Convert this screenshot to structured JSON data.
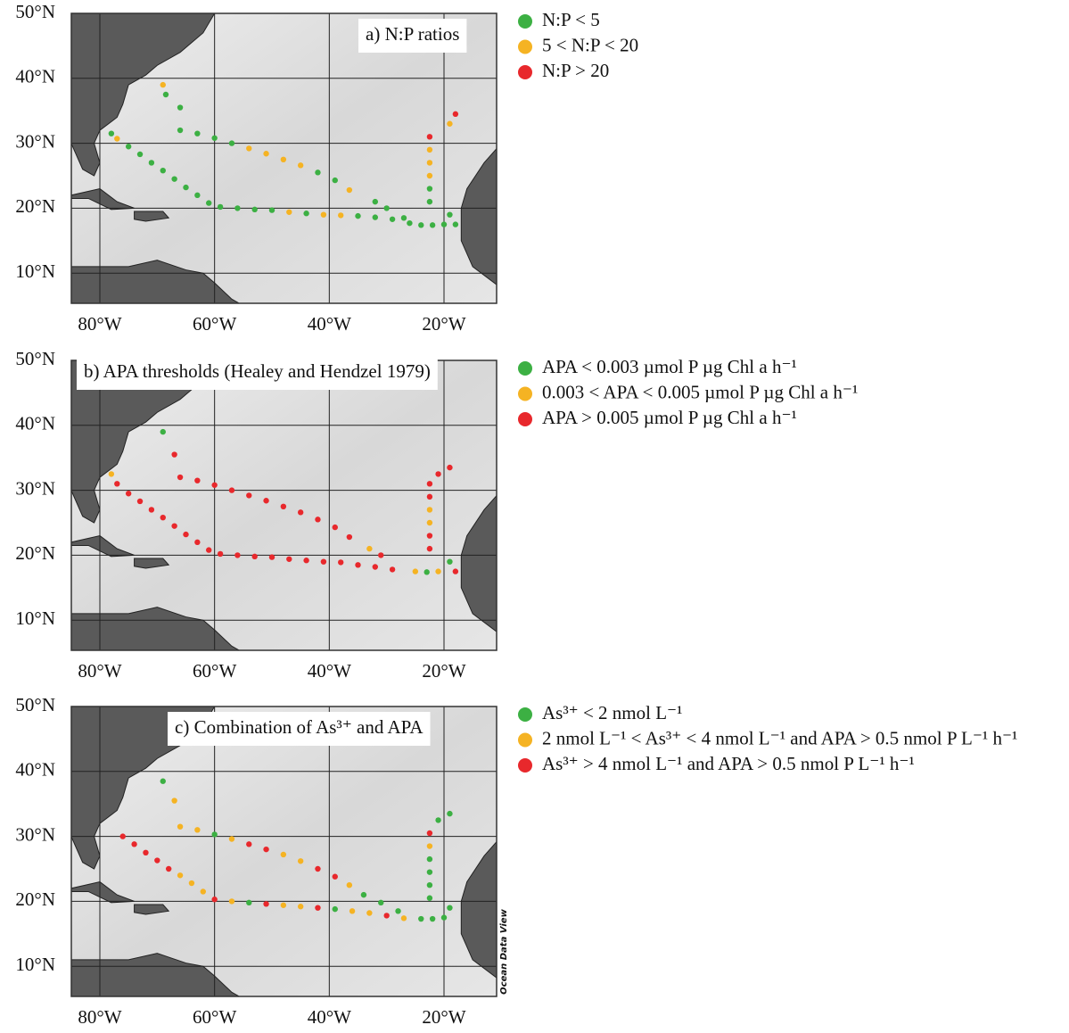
{
  "panels": [
    {
      "title": "a) N:P ratios",
      "legend": [
        {
          "label": "N:P < 5",
          "color": "#3cb043"
        },
        {
          "label": "5 < N:P < 20",
          "color": "#f5b323"
        },
        {
          "label": "N:P > 20",
          "color": "#e8282c"
        }
      ],
      "xticks": [
        {
          "value": -80,
          "label": "80°W"
        },
        {
          "value": -60,
          "label": "60°W"
        },
        {
          "value": -40,
          "label": "40°W"
        },
        {
          "value": -20,
          "label": "20°W"
        }
      ],
      "yticks": [
        {
          "value": 50,
          "label": "50°N"
        },
        {
          "value": 40,
          "label": "40°N"
        },
        {
          "value": 30,
          "label": "30°N"
        },
        {
          "value": 20,
          "label": "20°N"
        },
        {
          "value": 10,
          "label": "10°N"
        }
      ],
      "points": [
        [
          -69,
          39,
          1
        ],
        [
          -68.5,
          37.5,
          0
        ],
        [
          -66,
          35.5,
          0
        ],
        [
          -78,
          31.5,
          0
        ],
        [
          -77,
          30.7,
          1
        ],
        [
          -75,
          29.5,
          0
        ],
        [
          -73,
          28.3,
          0
        ],
        [
          -71,
          27,
          0
        ],
        [
          -69,
          25.8,
          0
        ],
        [
          -67,
          24.5,
          0
        ],
        [
          -65,
          23.2,
          0
        ],
        [
          -63,
          22,
          0
        ],
        [
          -61,
          20.8,
          0
        ],
        [
          -59,
          20.2,
          0
        ],
        [
          -56,
          20,
          0
        ],
        [
          -53,
          19.8,
          0
        ],
        [
          -50,
          19.7,
          0
        ],
        [
          -47,
          19.4,
          1
        ],
        [
          -44,
          19.2,
          0
        ],
        [
          -41,
          19,
          1
        ],
        [
          -38,
          18.9,
          1
        ],
        [
          -35,
          18.8,
          0
        ],
        [
          -32,
          18.6,
          0
        ],
        [
          -29,
          18.3,
          0
        ],
        [
          -26,
          17.7,
          0
        ],
        [
          -24,
          17.4,
          0
        ],
        [
          -22,
          17.4,
          0
        ],
        [
          -20,
          17.5,
          0
        ],
        [
          -18,
          17.5,
          0
        ],
        [
          -19,
          19,
          0
        ],
        [
          -66,
          32,
          0
        ],
        [
          -63,
          31.5,
          0
        ],
        [
          -60,
          30.8,
          0
        ],
        [
          -57,
          30,
          0
        ],
        [
          -54,
          29.2,
          1
        ],
        [
          -51,
          28.4,
          1
        ],
        [
          -48,
          27.5,
          1
        ],
        [
          -45,
          26.6,
          1
        ],
        [
          -42,
          25.5,
          0
        ],
        [
          -39,
          24.3,
          0
        ],
        [
          -36.5,
          22.8,
          1
        ],
        [
          -32,
          21,
          0
        ],
        [
          -30,
          20,
          0
        ],
        [
          -27,
          18.5,
          0
        ],
        [
          -22.5,
          31,
          2
        ],
        [
          -22.5,
          29,
          1
        ],
        [
          -22.5,
          27,
          1
        ],
        [
          -22.5,
          25,
          1
        ],
        [
          -22.5,
          23,
          0
        ],
        [
          -22.5,
          21,
          0
        ],
        [
          -19,
          33,
          1
        ],
        [
          -18,
          34.5,
          2
        ]
      ]
    },
    {
      "title": "b) APA thresholds (Healey and Hendzel 1979)",
      "legend": [
        {
          "label": "APA < 0.003 µmol P µg Chl a h⁻¹",
          "color": "#3cb043"
        },
        {
          "label": "0.003 < APA < 0.005 µmol P µg Chl a h⁻¹",
          "color": "#f5b323"
        },
        {
          "label": "APA > 0.005 µmol P µg Chl a h⁻¹",
          "color": "#e8282c"
        }
      ],
      "xticks": [
        {
          "value": -80,
          "label": "80°W"
        },
        {
          "value": -60,
          "label": "60°W"
        },
        {
          "value": -40,
          "label": "40°W"
        },
        {
          "value": -20,
          "label": "20°W"
        }
      ],
      "yticks": [
        {
          "value": 50,
          "label": "50°N"
        },
        {
          "value": 40,
          "label": "40°N"
        },
        {
          "value": 30,
          "label": "30°N"
        },
        {
          "value": 20,
          "label": "20°N"
        },
        {
          "value": 10,
          "label": "10°N"
        }
      ],
      "points": [
        [
          -69,
          39,
          0
        ],
        [
          -67,
          35.5,
          2
        ],
        [
          -78,
          32.5,
          1
        ],
        [
          -77,
          31,
          2
        ],
        [
          -75,
          29.5,
          2
        ],
        [
          -73,
          28.3,
          2
        ],
        [
          -71,
          27,
          2
        ],
        [
          -69,
          25.8,
          2
        ],
        [
          -67,
          24.5,
          2
        ],
        [
          -65,
          23.2,
          2
        ],
        [
          -63,
          22,
          2
        ],
        [
          -61,
          20.8,
          2
        ],
        [
          -59,
          20.2,
          2
        ],
        [
          -56,
          20,
          2
        ],
        [
          -53,
          19.8,
          2
        ],
        [
          -50,
          19.7,
          2
        ],
        [
          -47,
          19.4,
          2
        ],
        [
          -44,
          19.2,
          2
        ],
        [
          -41,
          19,
          2
        ],
        [
          -38,
          18.9,
          2
        ],
        [
          -35,
          18.5,
          2
        ],
        [
          -32,
          18.2,
          2
        ],
        [
          -29,
          17.8,
          2
        ],
        [
          -25,
          17.5,
          1
        ],
        [
          -23,
          17.4,
          0
        ],
        [
          -21,
          17.5,
          1
        ],
        [
          -19,
          19,
          0
        ],
        [
          -18,
          17.5,
          2
        ],
        [
          -66,
          32,
          2
        ],
        [
          -63,
          31.5,
          2
        ],
        [
          -60,
          30.8,
          2
        ],
        [
          -57,
          30,
          2
        ],
        [
          -54,
          29.2,
          2
        ],
        [
          -51,
          28.4,
          2
        ],
        [
          -48,
          27.5,
          2
        ],
        [
          -45,
          26.6,
          2
        ],
        [
          -42,
          25.5,
          2
        ],
        [
          -39,
          24.3,
          2
        ],
        [
          -36.5,
          22.8,
          2
        ],
        [
          -33,
          21,
          1
        ],
        [
          -31,
          20,
          2
        ],
        [
          -22.5,
          31,
          2
        ],
        [
          -22.5,
          29,
          2
        ],
        [
          -22.5,
          27,
          1
        ],
        [
          -22.5,
          25,
          1
        ],
        [
          -22.5,
          23,
          2
        ],
        [
          -22.5,
          21,
          2
        ],
        [
          -21,
          32.5,
          2
        ],
        [
          -19,
          33.5,
          2
        ]
      ]
    },
    {
      "title": "c) Combination of As³⁺ and APA",
      "legend": [
        {
          "label": "As³⁺ < 2 nmol L⁻¹",
          "color": "#3cb043"
        },
        {
          "label": "2 nmol L⁻¹ < As³⁺ < 4 nmol L⁻¹ and APA > 0.5 nmol P L⁻¹ h⁻¹",
          "color": "#f5b323"
        },
        {
          "label": "As³⁺ > 4 nmol L⁻¹ and APA > 0.5 nmol P L⁻¹ h⁻¹",
          "color": "#e8282c"
        }
      ],
      "xticks": [
        {
          "value": -80,
          "label": "80°W"
        },
        {
          "value": -60,
          "label": "60°W"
        },
        {
          "value": -40,
          "label": "40°W"
        },
        {
          "value": -20,
          "label": "20°W"
        }
      ],
      "yticks": [
        {
          "value": 50,
          "label": "50°N"
        },
        {
          "value": 40,
          "label": "40°N"
        },
        {
          "value": 30,
          "label": "30°N"
        },
        {
          "value": 20,
          "label": "20°N"
        },
        {
          "value": 10,
          "label": "10°N"
        }
      ],
      "watermark": "Ocean Data View",
      "points": [
        [
          -69,
          38.5,
          0
        ],
        [
          -67,
          35.5,
          1
        ],
        [
          -76,
          30,
          2
        ],
        [
          -74,
          28.8,
          2
        ],
        [
          -72,
          27.5,
          2
        ],
        [
          -70,
          26.3,
          2
        ],
        [
          -68,
          25,
          2
        ],
        [
          -66,
          24,
          1
        ],
        [
          -64,
          22.8,
          1
        ],
        [
          -62,
          21.5,
          1
        ],
        [
          -60,
          20.3,
          2
        ],
        [
          -57,
          20,
          1
        ],
        [
          -54,
          19.8,
          0
        ],
        [
          -51,
          19.6,
          2
        ],
        [
          -48,
          19.4,
          1
        ],
        [
          -45,
          19.2,
          1
        ],
        [
          -42,
          19,
          2
        ],
        [
          -39,
          18.8,
          0
        ],
        [
          -36,
          18.5,
          1
        ],
        [
          -33,
          18.2,
          1
        ],
        [
          -30,
          17.8,
          2
        ],
        [
          -27,
          17.4,
          1
        ],
        [
          -24,
          17.3,
          0
        ],
        [
          -22,
          17.3,
          0
        ],
        [
          -20,
          17.5,
          0
        ],
        [
          -19,
          19,
          0
        ],
        [
          -66,
          31.5,
          1
        ],
        [
          -63,
          31,
          1
        ],
        [
          -60,
          30.3,
          0
        ],
        [
          -57,
          29.6,
          1
        ],
        [
          -54,
          28.8,
          2
        ],
        [
          -51,
          28,
          2
        ],
        [
          -48,
          27.2,
          1
        ],
        [
          -45,
          26.2,
          1
        ],
        [
          -42,
          25,
          2
        ],
        [
          -39,
          23.8,
          2
        ],
        [
          -36.5,
          22.5,
          1
        ],
        [
          -34,
          21,
          0
        ],
        [
          -31,
          19.8,
          0
        ],
        [
          -28,
          18.5,
          0
        ],
        [
          -22.5,
          30.5,
          2
        ],
        [
          -22.5,
          28.5,
          1
        ],
        [
          -22.5,
          26.5,
          0
        ],
        [
          -22.5,
          24.5,
          0
        ],
        [
          -22.5,
          22.5,
          0
        ],
        [
          -22.5,
          20.5,
          0
        ],
        [
          -21,
          32.5,
          0
        ],
        [
          -19,
          33.5,
          0
        ]
      ]
    }
  ]
}
